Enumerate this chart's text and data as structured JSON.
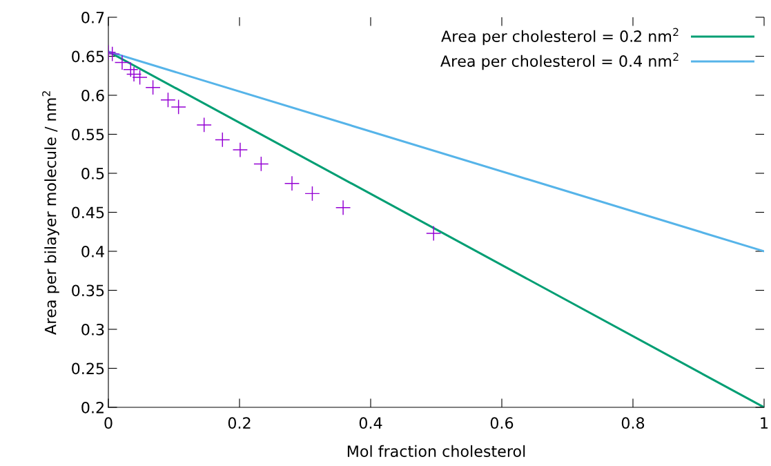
{
  "chart_data": {
    "type": "line",
    "xlabel": "Mol fraction cholesterol",
    "ylabel": "Area per bilayer molecule / nm$^{2}$",
    "series": [
      {
        "type": "scatter",
        "color": "#9400d3",
        "marker": "cross",
        "x": [
          0,
          0.006,
          0.021,
          0.034,
          0.039,
          0.048,
          0.068,
          0.091,
          0.107,
          0.146,
          0.174,
          0.201,
          0.233,
          0.28,
          0.311,
          0.358,
          0.496
        ],
        "values": [
          0.655,
          0.653,
          0.642,
          0.633,
          0.627,
          0.623,
          0.61,
          0.594,
          0.585,
          0.562,
          0.543,
          0.53,
          0.512,
          0.487,
          0.474,
          0.456,
          0.423
        ]
      },
      {
        "type": "line",
        "name": "Area per cholesterol = 0.2 nm$^{2}$",
        "color": "#009e73",
        "x": [
          0,
          1
        ],
        "values": [
          0.656,
          0.2
        ]
      },
      {
        "name": "Area per cholesterol = 0.4 nm$^{2}$",
        "color": "#56b4e9",
        "x": [
          0,
          1
        ],
        "values": [
          0.656,
          0.4
        ]
      }
    ],
    "xlim": [
      0,
      1
    ],
    "ylim": [
      0.2,
      0.7
    ],
    "xticks": [
      0,
      0.2,
      0.4,
      0.6,
      0.8,
      1
    ],
    "yticks": [
      0.2,
      0.25,
      0.3,
      0.35,
      0.4,
      0.45,
      0.5,
      0.55,
      0.6,
      0.65,
      0.7
    ],
    "legend": "top right",
    "grid": false,
    "marker": "none"
  }
}
